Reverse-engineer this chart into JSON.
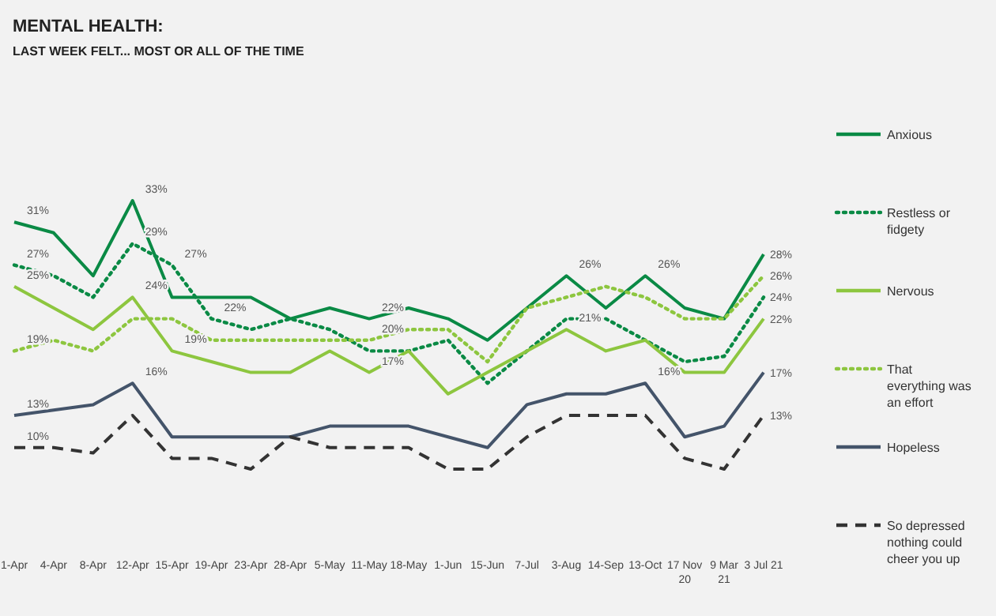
{
  "chart_data": {
    "type": "line",
    "title": "MENTAL HEALTH:",
    "subtitle": "LAST WEEK FELT... MOST OR ALL OF THE TIME",
    "categories": [
      "1-Apr",
      "4-Apr",
      "8-Apr",
      "12-Apr",
      "15-Apr",
      "19-Apr",
      "23-Apr",
      "28-Apr",
      "5-May",
      "11-May",
      "18-May",
      "1-Jun",
      "15-Jun",
      "7-Jul",
      "3-Aug",
      "14-Sep",
      "13-Oct",
      "17 Nov\n20",
      "9 Mar\n21",
      "3 Jul 21"
    ],
    "series": [
      {
        "name": "Anxious",
        "color": "#0a8a45",
        "line_style": "solid",
        "values": [
          31,
          30,
          26,
          33,
          24,
          24,
          24,
          22,
          23,
          22,
          23,
          22,
          20,
          23,
          26,
          23,
          26,
          23,
          22,
          28
        ],
        "value_labels": [
          "31%",
          null,
          null,
          "33%",
          null,
          null,
          null,
          null,
          null,
          "22%",
          null,
          null,
          null,
          null,
          "26%",
          null,
          "26%",
          null,
          null,
          "28%"
        ]
      },
      {
        "name": "Restless or fidgety",
        "color": "#0a8a45",
        "line_style": "dotted",
        "values": [
          27,
          26,
          24,
          29,
          27,
          22,
          21,
          22,
          21,
          19,
          19,
          20,
          16,
          19,
          22,
          22,
          20,
          18,
          18.5,
          24
        ],
        "value_labels": [
          "27%",
          null,
          null,
          "29%",
          "27%",
          "22%",
          null,
          null,
          null,
          null,
          null,
          null,
          null,
          null,
          null,
          null,
          null,
          null,
          null,
          "24%"
        ]
      },
      {
        "name": "Nervous",
        "color": "#8dc63f",
        "line_style": "solid",
        "values": [
          25,
          23,
          21,
          24,
          19,
          18,
          17,
          17,
          19,
          17,
          19,
          15,
          17,
          19,
          21,
          19,
          20,
          17,
          17,
          22
        ],
        "value_labels": [
          "25%",
          null,
          null,
          "24%",
          "19%",
          null,
          null,
          null,
          null,
          "17%",
          null,
          null,
          null,
          null,
          "21%",
          null,
          null,
          null,
          null,
          "22%"
        ]
      },
      {
        "name": "That everything was an effort",
        "color": "#8dc63f",
        "line_style": "dotted",
        "values": [
          19,
          20,
          19,
          22,
          22,
          20,
          20,
          20,
          20,
          20,
          21,
          21,
          18,
          23,
          24,
          25,
          24,
          22,
          22,
          26
        ],
        "value_labels": [
          "19%",
          null,
          null,
          null,
          null,
          null,
          null,
          null,
          null,
          "20%",
          null,
          null,
          null,
          null,
          null,
          null,
          null,
          null,
          null,
          "26%"
        ]
      },
      {
        "name": "Hopeless",
        "color": "#44546a",
        "line_style": "solid",
        "values": [
          13,
          13.5,
          14,
          16,
          11,
          11,
          11,
          11,
          12,
          12,
          12,
          11,
          10,
          14,
          15,
          15,
          16,
          11,
          12,
          17
        ],
        "value_labels": [
          "13%",
          null,
          null,
          "16%",
          null,
          null,
          null,
          null,
          null,
          null,
          null,
          null,
          null,
          null,
          null,
          null,
          "16%",
          null,
          null,
          "17%"
        ]
      },
      {
        "name": "So depressed nothing could cheer you up",
        "color": "#333333",
        "line_style": "dashed",
        "values": [
          10,
          10,
          9.5,
          13,
          9,
          9,
          8,
          11,
          10,
          10,
          10,
          8,
          8,
          11,
          13,
          13,
          13,
          9,
          8,
          13
        ],
        "value_labels": [
          "10%",
          null,
          null,
          null,
          null,
          null,
          null,
          null,
          null,
          null,
          null,
          null,
          null,
          null,
          null,
          null,
          null,
          null,
          null,
          "13%"
        ]
      }
    ],
    "legend": "right",
    "marker": "none",
    "grid": false
  }
}
